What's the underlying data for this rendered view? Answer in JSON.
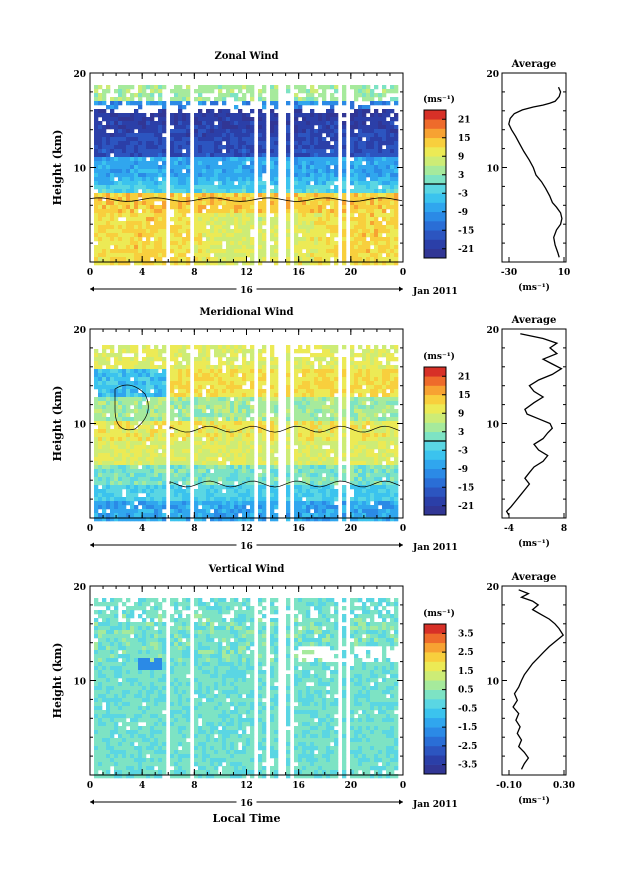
{
  "chart_data": [
    {
      "type": "heatmap",
      "title": "Zonal Wind",
      "ylabel": "Height (km)",
      "ylim": [
        0,
        20
      ],
      "y_ticks": [
        "20",
        "10"
      ],
      "x_ticks": [
        "0",
        "4",
        "8",
        "12",
        "16",
        "20",
        "0"
      ],
      "date_day": "16",
      "date_label": "Jan 2011",
      "unit_label": "(ms⁻¹)",
      "colorbar": {
        "ticks": [
          "21",
          "15",
          "9",
          "3",
          "-3",
          "-9",
          "-15",
          "-21"
        ],
        "range": [
          -24,
          24
        ],
        "zero_line": true
      },
      "profile": {
        "title": "Average",
        "x_ticks": [
          "-30",
          "10"
        ],
        "xlim": [
          -35,
          12
        ],
        "xunit": "(ms⁻¹)",
        "y_ticks": [
          "20",
          "10"
        ],
        "points": [
          [
            6.5,
            18.5
          ],
          [
            8,
            18
          ],
          [
            7,
            17.5
          ],
          [
            4,
            17
          ],
          [
            0,
            16.8
          ],
          [
            -5,
            16.6
          ],
          [
            -12,
            16.4
          ],
          [
            -20,
            16.1
          ],
          [
            -26,
            15.7
          ],
          [
            -29,
            15.2
          ],
          [
            -30,
            14.6
          ],
          [
            -28,
            14
          ],
          [
            -25,
            13.3
          ],
          [
            -22,
            12.5
          ],
          [
            -19,
            11.7
          ],
          [
            -15,
            10.8
          ],
          [
            -12,
            10
          ],
          [
            -10,
            9.2
          ],
          [
            -6,
            8.5
          ],
          [
            -3,
            7.8
          ],
          [
            0,
            7
          ],
          [
            2,
            6.3
          ],
          [
            5,
            5.8
          ],
          [
            8,
            5.2
          ],
          [
            9,
            4.6
          ],
          [
            8,
            4
          ],
          [
            5,
            3.4
          ],
          [
            3,
            2.6
          ],
          [
            4,
            1.8
          ],
          [
            6,
            1
          ],
          [
            7,
            0.5
          ]
        ]
      }
    },
    {
      "type": "heatmap",
      "title": "Meridional Wind",
      "ylabel": "Height (km)",
      "ylim": [
        0,
        20
      ],
      "y_ticks": [
        "20",
        "10"
      ],
      "x_ticks": [
        "0",
        "4",
        "8",
        "12",
        "16",
        "20",
        "0"
      ],
      "date_day": "16",
      "date_label": "Jan 2011",
      "unit_label": "(ms⁻¹)",
      "colorbar": {
        "ticks": [
          "21",
          "15",
          "9",
          "3",
          "-3",
          "-9",
          "-15",
          "-21"
        ],
        "range": [
          -24,
          24
        ],
        "zero_line": true
      },
      "profile": {
        "title": "Average",
        "x_ticks": [
          "-4",
          "8"
        ],
        "xlim": [
          -5,
          9
        ],
        "xunit": "(ms⁻¹)",
        "y_ticks": [
          "20",
          "10"
        ],
        "points": [
          [
            -1,
            19.5
          ],
          [
            4,
            19
          ],
          [
            7,
            18.5
          ],
          [
            5.5,
            18
          ],
          [
            7,
            17.4
          ],
          [
            4,
            16.8
          ],
          [
            6,
            16.3
          ],
          [
            8,
            15.8
          ],
          [
            6,
            15.2
          ],
          [
            3,
            14.6
          ],
          [
            1,
            14
          ],
          [
            2,
            13.4
          ],
          [
            4,
            12.8
          ],
          [
            2,
            12.2
          ],
          [
            0,
            11.5
          ],
          [
            0.5,
            11
          ],
          [
            3,
            10.5
          ],
          [
            5.5,
            10
          ],
          [
            6,
            9.5
          ],
          [
            5,
            9
          ],
          [
            4,
            8.4
          ],
          [
            2,
            7.8
          ],
          [
            3,
            7.2
          ],
          [
            5,
            6.6
          ],
          [
            4,
            6
          ],
          [
            2,
            5.4
          ],
          [
            1,
            4.8
          ],
          [
            0,
            4.2
          ],
          [
            1,
            3.6
          ],
          [
            0,
            3
          ],
          [
            -1,
            2.4
          ],
          [
            -2,
            1.8
          ],
          [
            -3,
            1.2
          ],
          [
            -4,
            0.7
          ],
          [
            -3.5,
            0.3
          ]
        ]
      }
    },
    {
      "type": "heatmap",
      "title": "Vertical Wind",
      "ylabel": "Height (km)",
      "xlabel": "Local Time",
      "ylim": [
        0,
        20
      ],
      "y_ticks": [
        "20",
        "10"
      ],
      "x_ticks": [
        "0",
        "4",
        "8",
        "12",
        "16",
        "20",
        "0"
      ],
      "date_day": "16",
      "date_label": "Jan 2011",
      "unit_label": "(ms⁻¹)",
      "colorbar": {
        "ticks": [
          "3.5",
          "2.5",
          "1.5",
          "0.5",
          "-0.5",
          "-1.5",
          "-2.5",
          "-3.5"
        ],
        "range": [
          -4,
          4
        ],
        "zero_line": false
      },
      "profile": {
        "title": "Average",
        "x_ticks": [
          "-0.10",
          "0.30"
        ],
        "xlim": [
          -0.14,
          0.32
        ],
        "xunit": "(ms⁻¹)",
        "y_ticks": [
          "20",
          "10"
        ],
        "points": [
          [
            -0.02,
            19.6
          ],
          [
            0.05,
            19.2
          ],
          [
            0.0,
            18.8
          ],
          [
            0.08,
            18.4
          ],
          [
            0.12,
            18
          ],
          [
            0.08,
            17.5
          ],
          [
            0.14,
            17
          ],
          [
            0.2,
            16.5
          ],
          [
            0.24,
            16
          ],
          [
            0.27,
            15.5
          ],
          [
            0.3,
            14.8
          ],
          [
            0.25,
            14.2
          ],
          [
            0.2,
            13.6
          ],
          [
            0.16,
            13
          ],
          [
            0.12,
            12.4
          ],
          [
            0.08,
            11.8
          ],
          [
            0.05,
            11.2
          ],
          [
            0.02,
            10.6
          ],
          [
            0.0,
            10
          ],
          [
            -0.02,
            9.3
          ],
          [
            -0.05,
            8.6
          ],
          [
            -0.03,
            7.9
          ],
          [
            -0.06,
            7.2
          ],
          [
            -0.02,
            6.5
          ],
          [
            -0.04,
            5.8
          ],
          [
            -0.01,
            5.1
          ],
          [
            -0.03,
            4.4
          ],
          [
            0.0,
            3.7
          ],
          [
            -0.02,
            3
          ],
          [
            0.02,
            2.4
          ],
          [
            0.05,
            1.8
          ],
          [
            0.02,
            1.2
          ],
          [
            0.0,
            0.6
          ]
        ]
      }
    }
  ]
}
